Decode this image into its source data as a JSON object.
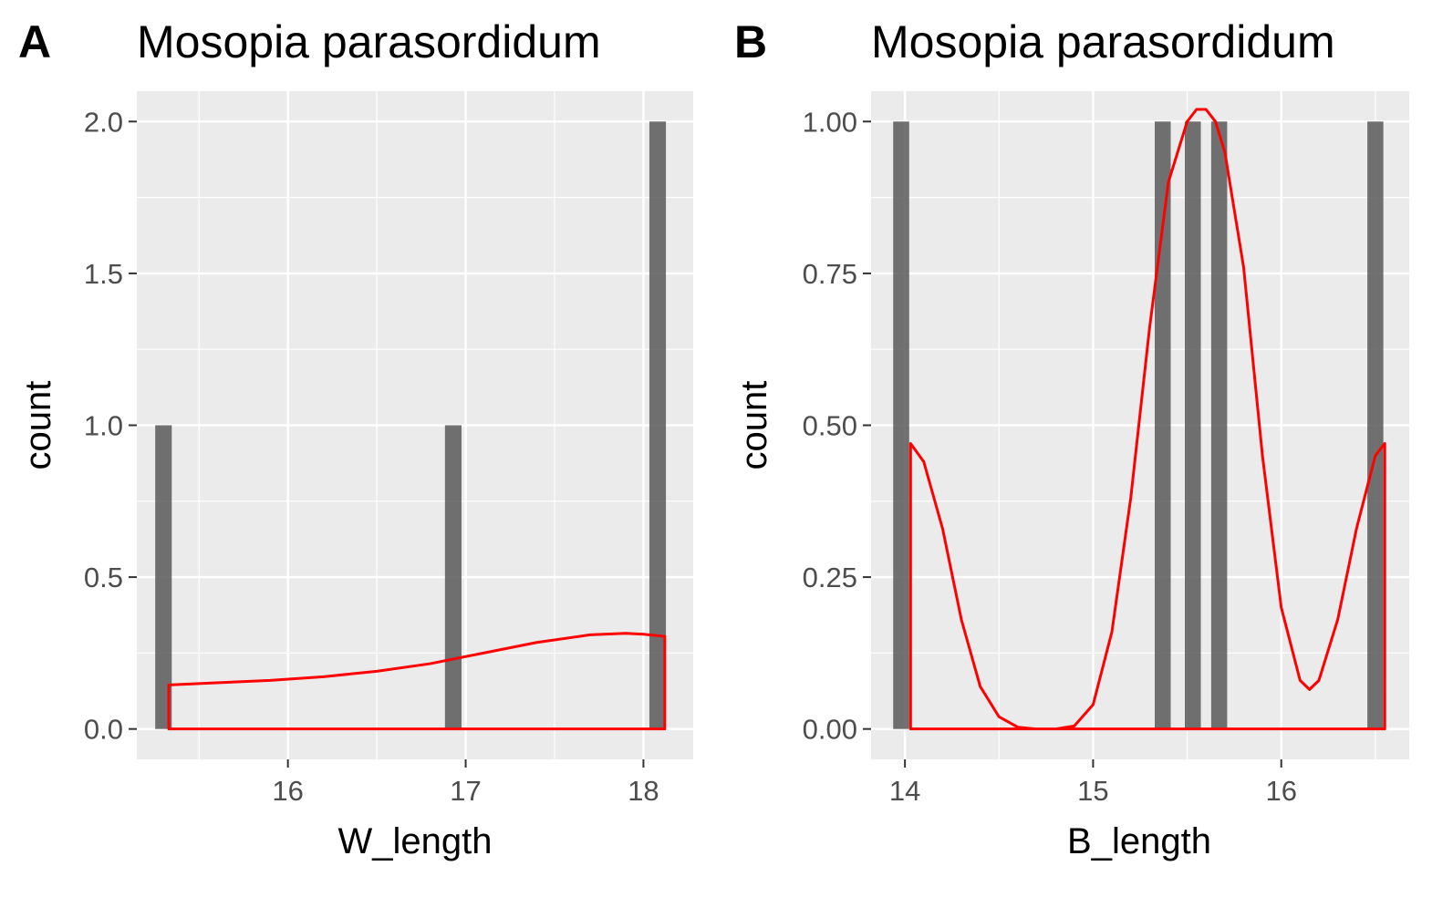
{
  "figure": {
    "panel_bg": "#EBEBEB",
    "grid_color": "#FFFFFF",
    "bar_color": "#595959",
    "density_color": "#FF0000",
    "tick_color": "#333333"
  },
  "chart_data": [
    {
      "type": "bar",
      "panel_tag": "A",
      "title": "Mosopia parasordidum",
      "xlabel": "W_length",
      "ylabel": "count",
      "xlim": [
        15.15,
        18.28
      ],
      "ylim": [
        -0.1,
        2.1
      ],
      "x_ticks": [
        16,
        17,
        18
      ],
      "x_tick_labels": [
        "16",
        "17",
        "18"
      ],
      "y_ticks": [
        0,
        0.5,
        1,
        1.5,
        2
      ],
      "y_tick_labels": [
        "0.0",
        "0.5",
        "1.0",
        "1.5",
        "2.0"
      ],
      "bin_width": 0.093,
      "bars": [
        {
          "x": 15.3,
          "count": 1
        },
        {
          "x": 16.93,
          "count": 1
        },
        {
          "x": 18.08,
          "count": 2
        }
      ],
      "density": {
        "x": [
          15.33,
          15.6,
          15.9,
          16.2,
          16.5,
          16.8,
          17.1,
          17.4,
          17.7,
          17.9,
          18.0,
          18.12
        ],
        "y": [
          0.145,
          0.152,
          0.16,
          0.172,
          0.19,
          0.215,
          0.25,
          0.285,
          0.31,
          0.315,
          0.312,
          0.305
        ]
      }
    },
    {
      "type": "bar",
      "panel_tag": "B",
      "title": "Mosopia parasordidum",
      "xlabel": "B_length",
      "ylabel": "count",
      "xlim": [
        13.82,
        16.68
      ],
      "ylim": [
        -0.05,
        1.05
      ],
      "x_ticks": [
        14,
        15,
        16
      ],
      "x_tick_labels": [
        "14",
        "15",
        "16"
      ],
      "y_ticks": [
        0,
        0.25,
        0.5,
        0.75,
        1
      ],
      "y_tick_labels": [
        "0.00",
        "0.25",
        "0.50",
        "0.75",
        "1.00"
      ],
      "bin_width": 0.085,
      "bars": [
        {
          "x": 13.98,
          "count": 1
        },
        {
          "x": 15.37,
          "count": 1
        },
        {
          "x": 15.53,
          "count": 1
        },
        {
          "x": 15.67,
          "count": 1
        },
        {
          "x": 16.5,
          "count": 1
        }
      ],
      "density": {
        "x": [
          14.03,
          14.1,
          14.2,
          14.3,
          14.4,
          14.5,
          14.6,
          14.7,
          14.8,
          14.9,
          15.0,
          15.1,
          15.2,
          15.3,
          15.4,
          15.5,
          15.55,
          15.6,
          15.65,
          15.7,
          15.8,
          15.9,
          16.0,
          16.1,
          16.15,
          16.2,
          16.3,
          16.4,
          16.5,
          16.55
        ],
        "y": [
          0.47,
          0.44,
          0.33,
          0.18,
          0.07,
          0.02,
          0.003,
          0.0,
          0.0,
          0.005,
          0.04,
          0.16,
          0.38,
          0.66,
          0.9,
          1.0,
          1.02,
          1.02,
          1.0,
          0.95,
          0.76,
          0.45,
          0.2,
          0.08,
          0.065,
          0.08,
          0.18,
          0.33,
          0.45,
          0.47
        ]
      }
    }
  ]
}
